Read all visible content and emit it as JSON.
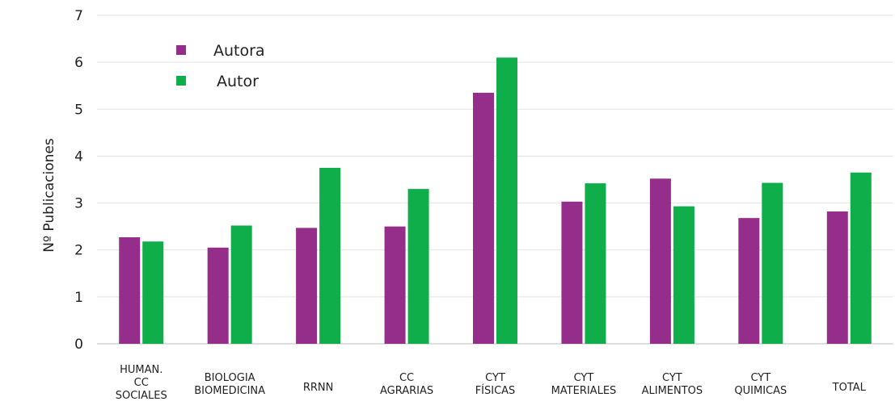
{
  "chart_data": {
    "type": "bar",
    "title": "",
    "xlabel": "",
    "ylabel": "Nº Publicaciones",
    "ylim": [
      0,
      7
    ],
    "yticks": [
      0,
      1,
      2,
      3,
      4,
      5,
      6,
      7
    ],
    "ytick_labels": [
      "0",
      "1",
      "2",
      "3",
      "4",
      "5",
      "6",
      "7"
    ],
    "grid": "horizontal",
    "legend_position": "top-left",
    "categories": [
      [
        "HUMAN.",
        "CC",
        "SOCIALES"
      ],
      [
        "BIOLOGIA",
        "BIOMEDICINA"
      ],
      [
        "RRNN"
      ],
      [
        "CC",
        "AGRARIAS"
      ],
      [
        "CYT",
        "FÍSICAS"
      ],
      [
        "CYT",
        "MATERIALES"
      ],
      [
        "CYT",
        "ALIMENTOS"
      ],
      [
        "CYT",
        "QUIMICAS"
      ],
      [
        "TOTAL"
      ]
    ],
    "series": [
      {
        "name": "Autora",
        "color": "#952d8a",
        "values": [
          2.27,
          2.05,
          2.47,
          2.5,
          5.35,
          3.03,
          3.52,
          2.68,
          2.82
        ]
      },
      {
        "name": "Autor",
        "color": "#0fae4b",
        "values": [
          2.18,
          2.52,
          3.75,
          3.3,
          6.1,
          3.42,
          2.93,
          3.43,
          3.65
        ]
      }
    ]
  }
}
